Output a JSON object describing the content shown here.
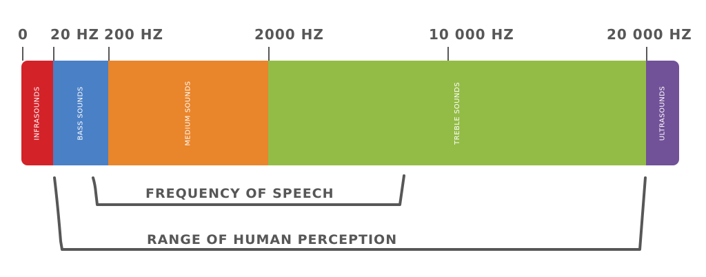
{
  "scale": {
    "ticks": [
      {
        "label": "0",
        "hz": 0
      },
      {
        "label": "20 HZ",
        "hz": 20
      },
      {
        "label": "200 HZ",
        "hz": 200
      },
      {
        "label": "2000 HZ",
        "hz": 2000
      },
      {
        "label": "10 000 HZ",
        "hz": 10000
      },
      {
        "label": "20 000 HZ",
        "hz": 20000
      }
    ]
  },
  "bands": [
    {
      "label": "INFRASOUNDS",
      "color": "#d42229"
    },
    {
      "label": "BASS SOUNDS",
      "color": "#4a80c6"
    },
    {
      "label": "MEDIUM SOUNDS",
      "color": "#e9852a"
    },
    {
      "label": "TREBLE SOUNDS",
      "color": "#93bc46"
    },
    {
      "label": "ULTRASOUNDS",
      "color": "#715198"
    }
  ],
  "brackets": {
    "speech": {
      "label": "FREQUENCY OF SPEECH"
    },
    "perception": {
      "label": "RANGE OF HUMAN PERCEPTION",
      "from": "20 HZ",
      "to": "20 000 HZ"
    }
  },
  "colors": {
    "text": "#575757",
    "bracket": "#575757"
  }
}
